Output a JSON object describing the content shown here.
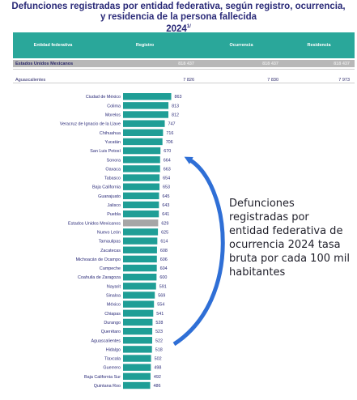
{
  "title": {
    "line1": "Defunciones registradas por entidad federativa, según registro, ocurrencia,",
    "line2": "y residencia de la persona fallecida",
    "year": "2024",
    "superscript": "1/"
  },
  "table": {
    "headers": [
      "Entidad federativa",
      "Registro",
      "Ocurrencia",
      "Residencia"
    ],
    "rows": [
      {
        "entity": "Estados Unidos Mexicanos",
        "registro": "818 437",
        "ocurrencia": "818 437",
        "residencia": "818 437"
      },
      {
        "entity": "Aguascalientes",
        "registro": "7 826",
        "ocurrencia": "7 830",
        "residencia": "7 973"
      }
    ]
  },
  "annotation": {
    "text": "Defunciones registradas por entidad federativa de ocurrencia 2024 tasa bruta por cada 100 mil habitantes"
  },
  "colors": {
    "header_teal": "#2aa79a",
    "bar": "#1f9e96",
    "bar_highlight": "#a6a6a6",
    "total_row": "#b8b8b8",
    "title": "#2a2a78",
    "arrow": "#2f6fd6"
  },
  "chart_data": {
    "type": "bar",
    "orientation": "horizontal",
    "categories": [
      "Ciudad de México",
      "Colima",
      "Morelos",
      "Veracruz de Ignacio de la Llave",
      "Chihuahua",
      "Yucatán",
      "San Luis Potosí",
      "Sonora",
      "Oaxaca",
      "Tabasco",
      "Baja California",
      "Guanajuato",
      "Jalisco",
      "Puebla",
      "Estados Unidos Mexicanos",
      "Nuevo León",
      "Tamaulipas",
      "Zacatecas",
      "Michoacán de Ocampo",
      "Campeche",
      "Coahuila de Zaragoza",
      "Nayarit",
      "Sinaloa",
      "México",
      "Chiapas",
      "Durango",
      "Querétaro",
      "Aguascalientes",
      "Hidalgo",
      "Tlaxcala",
      "Guerrero",
      "Baja California Sur",
      "Quintana Roo"
    ],
    "values": [
      863,
      813,
      812,
      747,
      716,
      706,
      670,
      664,
      663,
      654,
      653,
      645,
      643,
      641,
      629,
      625,
      614,
      608,
      606,
      604,
      600,
      591,
      569,
      554,
      541,
      528,
      523,
      522,
      518,
      502,
      498,
      492,
      486
    ],
    "value_labels": [
      "863",
      "813",
      "812",
      "747",
      "716",
      "706",
      "670",
      "664",
      "663",
      "654",
      "653",
      "645",
      "643",
      "641",
      "629",
      "625",
      "614",
      "608",
      "606",
      "604",
      "600",
      "591",
      "569",
      "554",
      "541",
      "528",
      "523",
      "522",
      "518",
      "502",
      "498",
      "492",
      "486"
    ],
    "highlight_category": "Estados Unidos Mexicanos",
    "xlim": [
      0,
      870
    ]
  }
}
